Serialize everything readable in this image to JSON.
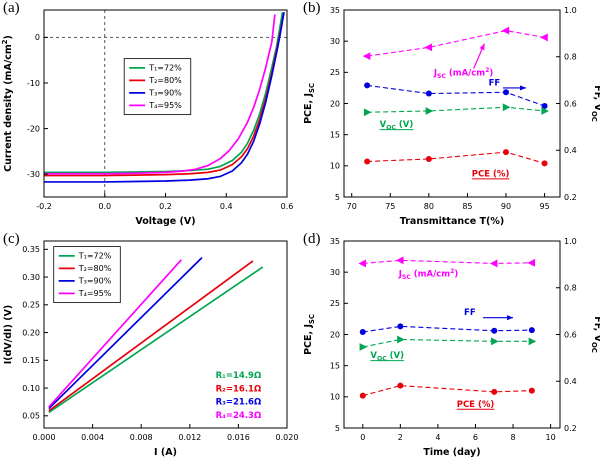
{
  "figure_background": "#ffffff",
  "chart_data": [
    {
      "panel_label": "(a)",
      "type": "line",
      "xlabel": "Voltage (V)",
      "ylabel": "Current density (mA/cm^{2})",
      "xlim": [
        -0.2,
        0.6
      ],
      "ylim": [
        -35,
        6
      ],
      "xticks": [
        -0.2,
        0,
        0.2,
        0.4,
        0.6
      ],
      "xtick_labels": [
        "-0.2",
        "0.0",
        "0.2",
        "0.4",
        "0.6"
      ],
      "yticks": [
        0,
        -10,
        -20,
        -30
      ],
      "ytick_labels": [
        "0",
        "-10",
        "-20",
        "-30"
      ],
      "ref_lines": [
        {
          "orient": "h",
          "value": 0
        },
        {
          "orient": "v",
          "value": 0
        }
      ],
      "legend": {
        "fx": 0.33,
        "fy": 0.26
      },
      "series": [
        {
          "name": "T₁=72%",
          "color": "#00a651",
          "dash": false,
          "marker": null,
          "x": [
            -0.2,
            -0.1,
            0.0,
            0.1,
            0.2,
            0.28,
            0.34,
            0.38,
            0.42,
            0.45,
            0.47,
            0.49,
            0.51,
            0.53,
            0.55,
            0.565,
            0.575,
            0.585
          ],
          "y": [
            -29.6,
            -29.6,
            -29.6,
            -29.5,
            -29.4,
            -29.2,
            -28.9,
            -28.3,
            -27.0,
            -25.2,
            -23.2,
            -20.4,
            -16.8,
            -12.2,
            -6.6,
            -2.2,
            1.5,
            5.5
          ]
        },
        {
          "name": "T₂=80%",
          "color": "#e8000b",
          "dash": false,
          "marker": null,
          "x": [
            -0.2,
            -0.1,
            0.0,
            0.1,
            0.2,
            0.28,
            0.34,
            0.38,
            0.42,
            0.45,
            0.47,
            0.49,
            0.51,
            0.53,
            0.55,
            0.57,
            0.58,
            0.59
          ],
          "y": [
            -30.3,
            -30.3,
            -30.3,
            -30.2,
            -30.1,
            -29.9,
            -29.6,
            -29.1,
            -27.9,
            -26.2,
            -24.4,
            -21.7,
            -18.0,
            -13.4,
            -7.8,
            -1.5,
            2.0,
            5.5
          ]
        },
        {
          "name": "T₃=90%",
          "color": "#0000e0",
          "dash": false,
          "marker": null,
          "x": [
            -0.2,
            -0.1,
            0.0,
            0.1,
            0.2,
            0.28,
            0.34,
            0.38,
            0.42,
            0.45,
            0.47,
            0.49,
            0.51,
            0.53,
            0.55,
            0.57,
            0.58,
            0.59
          ],
          "y": [
            -31.7,
            -31.7,
            -31.7,
            -31.6,
            -31.5,
            -31.3,
            -31.0,
            -30.5,
            -29.3,
            -27.5,
            -25.6,
            -22.8,
            -19.0,
            -14.2,
            -8.4,
            -2.0,
            1.6,
            5.5
          ]
        },
        {
          "name": "T₄=95%",
          "color": "#ff00ff",
          "dash": false,
          "marker": null,
          "x": [
            -0.2,
            -0.1,
            0.0,
            0.1,
            0.2,
            0.26,
            0.3,
            0.34,
            0.38,
            0.41,
            0.44,
            0.47,
            0.49,
            0.51,
            0.53,
            0.55,
            0.56
          ],
          "y": [
            -29.9,
            -29.9,
            -29.9,
            -29.8,
            -29.6,
            -29.3,
            -28.9,
            -28.1,
            -26.6,
            -24.8,
            -22.2,
            -18.6,
            -15.4,
            -11.4,
            -6.6,
            -1.0,
            5.0
          ]
        }
      ]
    },
    {
      "panel_label": "(b)",
      "type": "scatter-line",
      "xlabel": "Transmittance T(%)",
      "ylabel": "PCE, J_{SC}",
      "ylabel_right": "FF, V_{OC}",
      "xlim": [
        69,
        97
      ],
      "ylim": [
        5,
        35
      ],
      "xticks": [
        70,
        75,
        80,
        85,
        90,
        95
      ],
      "xtick_labels": [
        "70",
        "75",
        "80",
        "85",
        "90",
        "95"
      ],
      "yticks": [
        5,
        10,
        15,
        20,
        25,
        30,
        35
      ],
      "ytick_labels": [
        "5",
        "10",
        "15",
        "20",
        "25",
        "30",
        "35"
      ],
      "right_axis": {
        "lim": [
          0.2,
          1.0
        ],
        "ticks": [
          0.2,
          0.4,
          0.6,
          0.8,
          1.0
        ],
        "labels": [
          "0.2",
          "0.4",
          "0.6",
          "0.8",
          "1.0"
        ]
      },
      "series": [
        {
          "name": "Jsc (mA/cm2)",
          "color": "#ff00ff",
          "dash": true,
          "marker": "tri-left",
          "x": [
            72,
            80,
            90,
            95
          ],
          "y": [
            27.6,
            29.0,
            31.7,
            30.6
          ]
        },
        {
          "name": "FF",
          "color": "#0000e0",
          "dash": true,
          "marker": "circle",
          "x": [
            72,
            80,
            90,
            95
          ],
          "y": [
            22.9,
            21.6,
            21.8,
            19.6
          ],
          "values_right": [
            0.68,
            0.64,
            0.65,
            0.59
          ]
        },
        {
          "name": "Voc (V)",
          "color": "#00a651",
          "dash": true,
          "marker": "tri-right",
          "x": [
            72,
            80,
            90,
            95
          ],
          "y": [
            18.6,
            18.8,
            19.4,
            18.8
          ],
          "values_right": [
            0.56,
            0.57,
            0.58,
            0.57
          ]
        },
        {
          "name": "PCE (%)",
          "color": "#e8000b",
          "dash": true,
          "marker": "circle",
          "x": [
            72,
            80,
            90,
            95
          ],
          "y": [
            10.7,
            11.1,
            12.2,
            10.4
          ]
        }
      ],
      "annotations": [
        {
          "text": "J_{SC} (mA/cm^{2})",
          "x": 84.5,
          "y": 24.5,
          "color": "#ff00ff",
          "arrow": {
            "x1": 85.8,
            "y1": 25.6,
            "x2": 87.2,
            "y2": 29.6
          }
        },
        {
          "text": "FF",
          "x": 88.5,
          "y": 22.9,
          "color": "#0000e0",
          "arrow": {
            "x1": 89.6,
            "y1": 22.5,
            "x2": 92.6,
            "y2": 22.5
          }
        },
        {
          "text": "V_{OC} (V)",
          "x": 75.8,
          "y": 16.2,
          "color": "#00a651",
          "underline": true
        },
        {
          "text": "PCE (%)",
          "x": 88.0,
          "y": 8.3,
          "color": "#e8000b",
          "underline": true
        }
      ]
    },
    {
      "panel_label": "(c)",
      "type": "line",
      "xlabel": "I (A)",
      "ylabel": "I(dV/dI) (V)",
      "xlim": [
        0,
        0.02
      ],
      "ylim": [
        0.028,
        0.365
      ],
      "xticks": [
        0,
        0.004,
        0.008,
        0.012,
        0.016,
        0.02
      ],
      "xtick_labels": [
        "0.000",
        "0.004",
        "0.008",
        "0.012",
        "0.016",
        "0.020"
      ],
      "yticks": [
        0.05,
        0.1,
        0.15,
        0.2,
        0.25,
        0.3,
        0.35
      ],
      "ytick_labels": [
        "0.05",
        "0.10",
        "0.15",
        "0.20",
        "0.25",
        "0.30",
        "0.35"
      ],
      "legend": {
        "fx": 0.04,
        "fy": 0.03
      },
      "series": [
        {
          "name": "T₁=72%",
          "color": "#00a651",
          "dash": false,
          "marker": null,
          "x": [
            0.0004,
            0.018
          ],
          "y": [
            0.056,
            0.318
          ],
          "slope_ohm": 14.9
        },
        {
          "name": "T₂=80%",
          "color": "#e8000b",
          "dash": false,
          "marker": null,
          "x": [
            0.0004,
            0.0172
          ],
          "y": [
            0.059,
            0.329
          ],
          "slope_ohm": 16.1
        },
        {
          "name": "T₃=90%",
          "color": "#0000e0",
          "dash": false,
          "marker": null,
          "x": [
            0.0004,
            0.013
          ],
          "y": [
            0.063,
            0.335
          ],
          "slope_ohm": 21.6
        },
        {
          "name": "T₄=95%",
          "color": "#ff00ff",
          "dash": false,
          "marker": null,
          "x": [
            0.0004,
            0.0113
          ],
          "y": [
            0.066,
            0.331
          ],
          "slope_ohm": 24.3
        }
      ],
      "annotations": [
        {
          "text": "R₁=14.9Ω",
          "x": 0.016,
          "y": 0.118,
          "color": "#00a651"
        },
        {
          "text": "R₂=16.1Ω",
          "x": 0.016,
          "y": 0.094,
          "color": "#e8000b"
        },
        {
          "text": "R₃=21.6Ω",
          "x": 0.016,
          "y": 0.07,
          "color": "#0000e0"
        },
        {
          "text": "R₄=24.3Ω",
          "x": 0.016,
          "y": 0.046,
          "color": "#ff00ff"
        }
      ]
    },
    {
      "panel_label": "(d)",
      "type": "scatter-line",
      "xlabel": "Time (day)",
      "ylabel": "PCE, J_{SC}",
      "ylabel_right": "FF, V_{OC}",
      "xlim": [
        -1,
        10.5
      ],
      "ylim": [
        5,
        35
      ],
      "xticks": [
        0,
        2,
        4,
        6,
        8,
        10
      ],
      "xtick_labels": [
        "0",
        "2",
        "4",
        "6",
        "8",
        "10"
      ],
      "yticks": [
        5,
        10,
        15,
        20,
        25,
        30,
        35
      ],
      "ytick_labels": [
        "5",
        "10",
        "15",
        "20",
        "25",
        "30",
        "35"
      ],
      "right_axis": {
        "lim": [
          0.2,
          1.0
        ],
        "ticks": [
          0.2,
          0.4,
          0.6,
          0.8,
          1.0
        ],
        "labels": [
          "0.2",
          "0.4",
          "0.6",
          "0.8",
          "1.0"
        ]
      },
      "series": [
        {
          "name": "Jsc (mA/cm2)",
          "color": "#ff00ff",
          "dash": true,
          "marker": "tri-left",
          "x": [
            0,
            2,
            7,
            9
          ],
          "y": [
            31.4,
            31.9,
            31.4,
            31.5
          ]
        },
        {
          "name": "FF",
          "color": "#0000e0",
          "dash": true,
          "marker": "circle",
          "x": [
            0,
            2,
            7,
            9
          ],
          "y": [
            20.4,
            21.3,
            20.6,
            20.7
          ],
          "values_right": [
            0.61,
            0.63,
            0.62,
            0.62
          ]
        },
        {
          "name": "Voc (V)",
          "color": "#00a651",
          "dash": true,
          "marker": "tri-right",
          "x": [
            0,
            2,
            7,
            9
          ],
          "y": [
            18.0,
            19.2,
            18.9,
            18.9
          ],
          "values_right": [
            0.55,
            0.58,
            0.57,
            0.57
          ]
        },
        {
          "name": "PCE (%)",
          "color": "#e8000b",
          "dash": true,
          "marker": "circle",
          "x": [
            0,
            2,
            7,
            9
          ],
          "y": [
            10.2,
            11.8,
            10.8,
            11.0
          ]
        }
      ],
      "annotations": [
        {
          "text": "J_{SC} (mA/cm^{2})",
          "x": 3.5,
          "y": 29.3,
          "color": "#ff00ff"
        },
        {
          "text": "FF",
          "x": 5.7,
          "y": 23.1,
          "color": "#0000e0",
          "arrow": {
            "x1": 6.4,
            "y1": 22.7,
            "x2": 8.0,
            "y2": 22.7
          }
        },
        {
          "text": "V_{OC} (V)",
          "x": 1.3,
          "y": 16.2,
          "color": "#00a651",
          "underline": true
        },
        {
          "text": "PCE (%)",
          "x": 6.0,
          "y": 8.4,
          "color": "#e8000b",
          "underline": true
        }
      ]
    }
  ]
}
